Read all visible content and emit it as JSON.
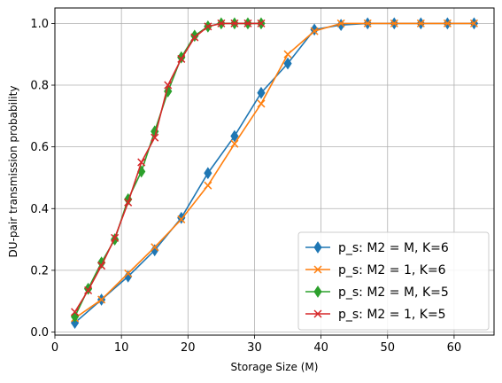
{
  "chart_data": {
    "type": "line",
    "title": "",
    "xlabel": "Storage Size (M)",
    "ylabel": "DU-pair transmission probability",
    "xlim": [
      0,
      66
    ],
    "ylim": [
      -0.01,
      1.05
    ],
    "xticks": [
      "0",
      "10",
      "20",
      "30",
      "40",
      "50",
      "60"
    ],
    "yticks": [
      "0.0",
      "0.2",
      "0.4",
      "0.6",
      "0.8",
      "1.0"
    ],
    "grid": true,
    "legend_position": "lower-right",
    "series": [
      {
        "name": "p_s: M2 = M, K=6",
        "color": "#1f77b4",
        "marker": "diamond",
        "x": [
          3,
          7,
          11,
          15,
          19,
          23,
          27,
          31,
          35,
          39,
          43,
          47,
          51,
          55,
          59,
          63
        ],
        "y": [
          0.03,
          0.105,
          0.18,
          0.265,
          0.37,
          0.515,
          0.635,
          0.775,
          0.87,
          0.98,
          0.995,
          1.0,
          1.0,
          1.0,
          1.0,
          1.0
        ]
      },
      {
        "name": "p_s: M2 = 1, K=6",
        "color": "#ff7f0e",
        "marker": "x",
        "x": [
          3,
          7,
          11,
          15,
          19,
          23,
          27,
          31,
          35,
          39,
          43,
          47,
          51,
          55,
          59,
          63
        ],
        "y": [
          0.045,
          0.105,
          0.19,
          0.275,
          0.365,
          0.475,
          0.61,
          0.74,
          0.9,
          0.975,
          1.0,
          1.0,
          1.0,
          1.0,
          1.0,
          1.0
        ]
      },
      {
        "name": "p_s: M2 = M, K=5",
        "color": "#2ca02c",
        "marker": "diamond",
        "x": [
          3,
          5,
          7,
          9,
          11,
          13,
          15,
          17,
          19,
          21,
          23,
          25,
          27,
          29,
          31
        ],
        "y": [
          0.05,
          0.14,
          0.225,
          0.3,
          0.43,
          0.52,
          0.65,
          0.78,
          0.89,
          0.96,
          0.99,
          1.0,
          1.0,
          1.0,
          1.0
        ]
      },
      {
        "name": "p_s: M2 = 1, K=5",
        "color": "#d62728",
        "marker": "x",
        "x": [
          3,
          5,
          7,
          9,
          11,
          13,
          15,
          17,
          19,
          21,
          23,
          25,
          27,
          29,
          31
        ],
        "y": [
          0.065,
          0.135,
          0.215,
          0.305,
          0.42,
          0.55,
          0.63,
          0.8,
          0.885,
          0.955,
          0.99,
          1.0,
          1.0,
          1.0,
          1.0
        ]
      }
    ]
  }
}
